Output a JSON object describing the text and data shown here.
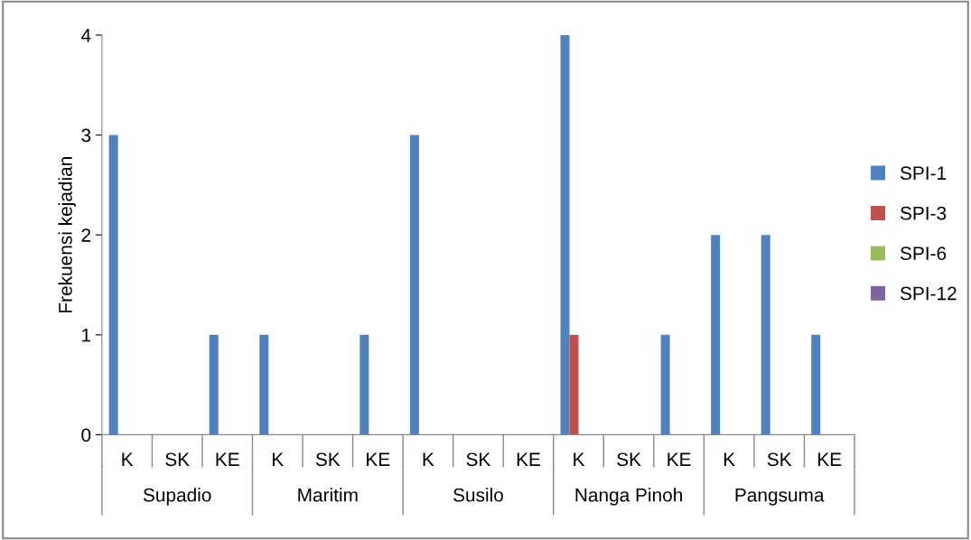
{
  "chart_data": {
    "type": "bar",
    "ylabel": "Frekuensi kejadian",
    "categories": [
      "K",
      "SK",
      "KE",
      "K",
      "SK",
      "KE",
      "K",
      "SK",
      "KE",
      "K",
      "SK",
      "KE",
      "K",
      "SK",
      "KE"
    ],
    "annotations": [
      "Supadio",
      "Maritim",
      "Susilo",
      "Nanga Pinoh",
      "Pangsuma"
    ],
    "series": [
      {
        "name": "SPI-1",
        "color": "#4f81bd",
        "values": [
          3,
          0,
          1,
          1,
          0,
          1,
          3,
          0,
          0,
          4,
          0,
          1,
          2,
          2,
          1
        ]
      },
      {
        "name": "SPI-3",
        "color": "#c0504d",
        "values": [
          0,
          0,
          0,
          0,
          0,
          0,
          0,
          0,
          0,
          1,
          0,
          0,
          0,
          0,
          0
        ]
      },
      {
        "name": "SPI-6",
        "color": "#9bbb59",
        "values": [
          0,
          0,
          0,
          0,
          0,
          0,
          0,
          0,
          0,
          0,
          0,
          0,
          0,
          0,
          0
        ]
      },
      {
        "name": "SPI-12",
        "color": "#8064a2",
        "values": [
          0,
          0,
          0,
          0,
          0,
          0,
          0,
          0,
          0,
          0,
          0,
          0,
          0,
          0,
          0
        ]
      }
    ],
    "ylim": [
      0,
      4
    ],
    "yticks": [
      0,
      1,
      2,
      3,
      4
    ],
    "grid": false,
    "legend": "right"
  }
}
